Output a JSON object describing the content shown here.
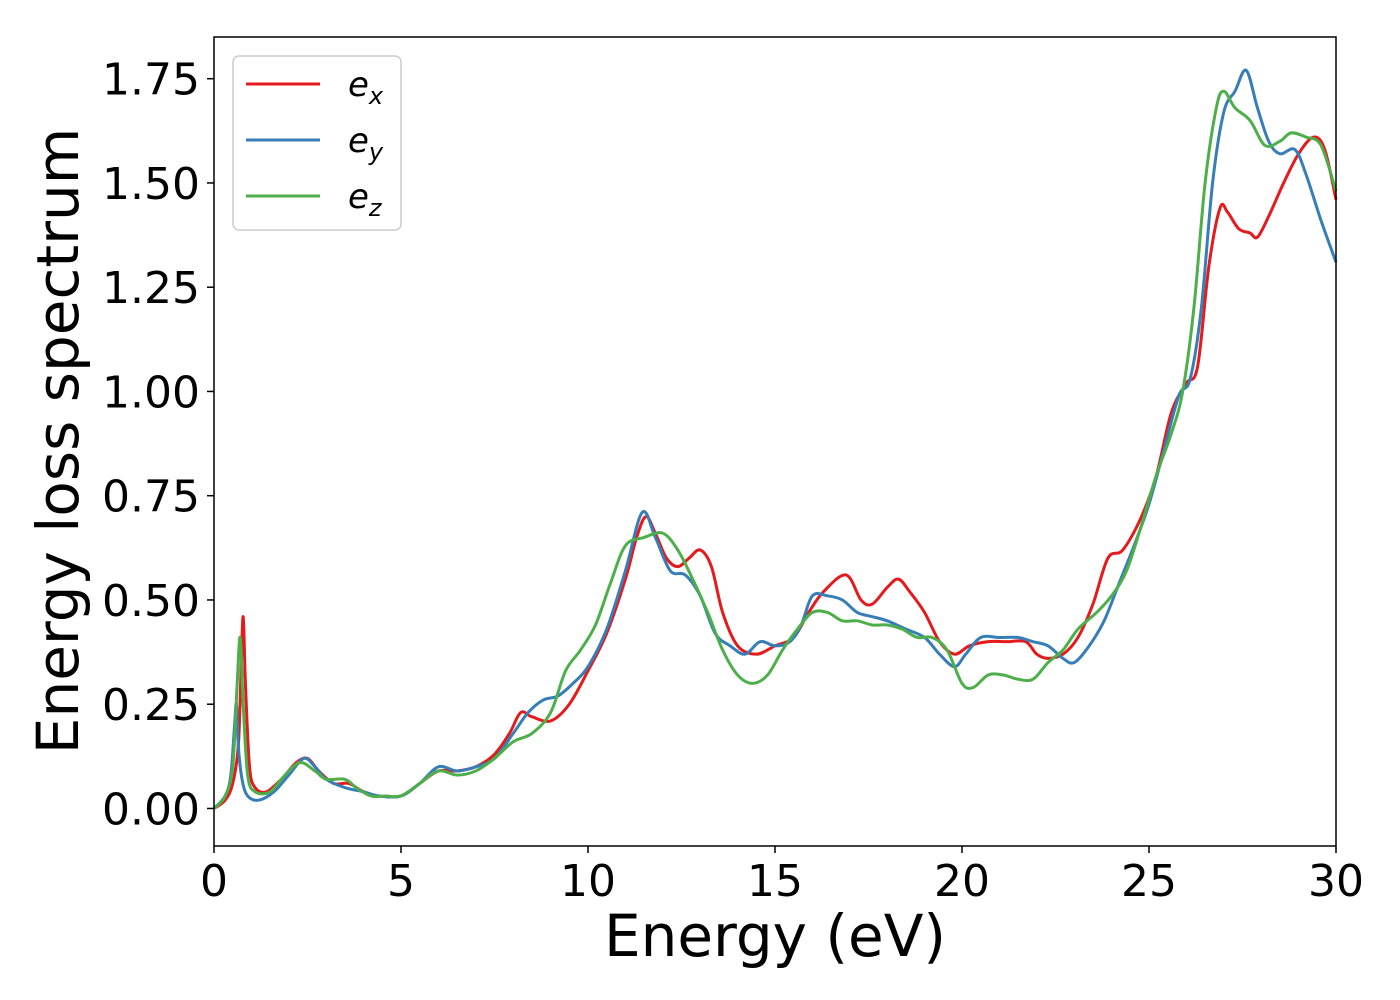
{
  "chart_data": {
    "type": "line",
    "title": "",
    "xlabel": "Energy (eV)",
    "ylabel": "Energy loss spectrum",
    "xlim": [
      0,
      30
    ],
    "ylim": [
      -0.09,
      1.85
    ],
    "xticks": [
      0,
      5,
      10,
      15,
      20,
      25,
      30
    ],
    "xtick_labels": [
      "0",
      "5",
      "10",
      "15",
      "20",
      "25",
      "30"
    ],
    "yticks": [
      0.0,
      0.25,
      0.5,
      0.75,
      1.0,
      1.25,
      1.5,
      1.75
    ],
    "ytick_labels": [
      "0.00",
      "0.25",
      "0.50",
      "0.75",
      "1.00",
      "1.25",
      "1.50",
      "1.75"
    ],
    "grid": false,
    "legend_position": "top-left",
    "series": [
      {
        "name": "e",
        "subscript": "x",
        "color": "#e41a1c",
        "points": [
          [
            0.0,
            0.0
          ],
          [
            0.3,
            0.02
          ],
          [
            0.5,
            0.06
          ],
          [
            0.65,
            0.15
          ],
          [
            0.72,
            0.32
          ],
          [
            0.78,
            0.46
          ],
          [
            0.84,
            0.3
          ],
          [
            0.95,
            0.1
          ],
          [
            1.1,
            0.05
          ],
          [
            1.4,
            0.04
          ],
          [
            1.8,
            0.07
          ],
          [
            2.2,
            0.11
          ],
          [
            2.5,
            0.12
          ],
          [
            2.8,
            0.09
          ],
          [
            3.2,
            0.06
          ],
          [
            3.6,
            0.06
          ],
          [
            4.0,
            0.04
          ],
          [
            4.4,
            0.03
          ],
          [
            5.0,
            0.03
          ],
          [
            5.5,
            0.06
          ],
          [
            6.0,
            0.09
          ],
          [
            6.5,
            0.09
          ],
          [
            7.0,
            0.1
          ],
          [
            7.5,
            0.13
          ],
          [
            7.9,
            0.18
          ],
          [
            8.2,
            0.23
          ],
          [
            8.5,
            0.22
          ],
          [
            9.0,
            0.21
          ],
          [
            9.5,
            0.25
          ],
          [
            10.0,
            0.33
          ],
          [
            10.5,
            0.42
          ],
          [
            11.0,
            0.55
          ],
          [
            11.3,
            0.65
          ],
          [
            11.55,
            0.7
          ],
          [
            11.8,
            0.66
          ],
          [
            12.1,
            0.6
          ],
          [
            12.4,
            0.58
          ],
          [
            12.7,
            0.6
          ],
          [
            13.0,
            0.62
          ],
          [
            13.3,
            0.58
          ],
          [
            13.6,
            0.47
          ],
          [
            14.0,
            0.39
          ],
          [
            14.5,
            0.37
          ],
          [
            15.0,
            0.39
          ],
          [
            15.5,
            0.41
          ],
          [
            15.9,
            0.47
          ],
          [
            16.3,
            0.52
          ],
          [
            16.9,
            0.56
          ],
          [
            17.3,
            0.5
          ],
          [
            17.6,
            0.49
          ],
          [
            18.0,
            0.53
          ],
          [
            18.3,
            0.55
          ],
          [
            18.6,
            0.52
          ],
          [
            19.0,
            0.47
          ],
          [
            19.4,
            0.4
          ],
          [
            19.8,
            0.37
          ],
          [
            20.2,
            0.39
          ],
          [
            20.7,
            0.4
          ],
          [
            21.2,
            0.4
          ],
          [
            21.7,
            0.4
          ],
          [
            22.0,
            0.37
          ],
          [
            22.3,
            0.36
          ],
          [
            22.7,
            0.37
          ],
          [
            23.1,
            0.41
          ],
          [
            23.5,
            0.49
          ],
          [
            23.9,
            0.6
          ],
          [
            24.3,
            0.62
          ],
          [
            24.8,
            0.7
          ],
          [
            25.2,
            0.8
          ],
          [
            25.6,
            0.95
          ],
          [
            26.0,
            1.02
          ],
          [
            26.3,
            1.06
          ],
          [
            26.6,
            1.3
          ],
          [
            26.9,
            1.44
          ],
          [
            27.1,
            1.43
          ],
          [
            27.4,
            1.39
          ],
          [
            27.7,
            1.38
          ],
          [
            27.9,
            1.37
          ],
          [
            28.2,
            1.42
          ],
          [
            28.6,
            1.5
          ],
          [
            29.0,
            1.57
          ],
          [
            29.4,
            1.61
          ],
          [
            29.7,
            1.58
          ],
          [
            30.0,
            1.46
          ]
        ]
      },
      {
        "name": "e",
        "subscript": "y",
        "color": "#377eb8",
        "points": [
          [
            0.0,
            0.0
          ],
          [
            0.3,
            0.03
          ],
          [
            0.45,
            0.08
          ],
          [
            0.55,
            0.2
          ],
          [
            0.6,
            0.25
          ],
          [
            0.65,
            0.15
          ],
          [
            0.75,
            0.07
          ],
          [
            0.9,
            0.03
          ],
          [
            1.2,
            0.02
          ],
          [
            1.6,
            0.04
          ],
          [
            2.0,
            0.08
          ],
          [
            2.4,
            0.12
          ],
          [
            2.7,
            0.1
          ],
          [
            3.0,
            0.07
          ],
          [
            3.5,
            0.05
          ],
          [
            4.0,
            0.04
          ],
          [
            4.4,
            0.03
          ],
          [
            5.0,
            0.03
          ],
          [
            5.5,
            0.06
          ],
          [
            6.0,
            0.1
          ],
          [
            6.5,
            0.09
          ],
          [
            7.0,
            0.1
          ],
          [
            7.5,
            0.12
          ],
          [
            8.0,
            0.18
          ],
          [
            8.4,
            0.23
          ],
          [
            8.8,
            0.26
          ],
          [
            9.2,
            0.27
          ],
          [
            9.6,
            0.3
          ],
          [
            10.0,
            0.34
          ],
          [
            10.5,
            0.43
          ],
          [
            11.0,
            0.57
          ],
          [
            11.45,
            0.71
          ],
          [
            11.8,
            0.65
          ],
          [
            12.2,
            0.57
          ],
          [
            12.6,
            0.56
          ],
          [
            13.0,
            0.51
          ],
          [
            13.4,
            0.42
          ],
          [
            13.8,
            0.39
          ],
          [
            14.2,
            0.37
          ],
          [
            14.6,
            0.4
          ],
          [
            15.0,
            0.39
          ],
          [
            15.4,
            0.4
          ],
          [
            15.7,
            0.44
          ],
          [
            16.0,
            0.51
          ],
          [
            16.4,
            0.51
          ],
          [
            16.8,
            0.5
          ],
          [
            17.2,
            0.47
          ],
          [
            17.6,
            0.46
          ],
          [
            18.0,
            0.45
          ],
          [
            18.5,
            0.43
          ],
          [
            19.0,
            0.41
          ],
          [
            19.4,
            0.37
          ],
          [
            19.8,
            0.34
          ],
          [
            20.1,
            0.37
          ],
          [
            20.5,
            0.41
          ],
          [
            21.0,
            0.41
          ],
          [
            21.5,
            0.41
          ],
          [
            21.9,
            0.4
          ],
          [
            22.3,
            0.39
          ],
          [
            22.7,
            0.36
          ],
          [
            23.0,
            0.35
          ],
          [
            23.4,
            0.39
          ],
          [
            23.8,
            0.45
          ],
          [
            24.2,
            0.54
          ],
          [
            24.6,
            0.63
          ],
          [
            25.0,
            0.73
          ],
          [
            25.4,
            0.86
          ],
          [
            25.8,
            0.99
          ],
          [
            26.1,
            1.03
          ],
          [
            26.4,
            1.2
          ],
          [
            26.7,
            1.5
          ],
          [
            27.0,
            1.67
          ],
          [
            27.3,
            1.72
          ],
          [
            27.6,
            1.77
          ],
          [
            27.9,
            1.68
          ],
          [
            28.2,
            1.6
          ],
          [
            28.5,
            1.57
          ],
          [
            28.9,
            1.58
          ],
          [
            29.2,
            1.52
          ],
          [
            29.6,
            1.41
          ],
          [
            30.0,
            1.31
          ]
        ]
      },
      {
        "name": "e",
        "subscript": "z",
        "color": "#4daf4a",
        "points": [
          [
            0.0,
            0.0
          ],
          [
            0.3,
            0.03
          ],
          [
            0.5,
            0.1
          ],
          [
            0.62,
            0.3
          ],
          [
            0.7,
            0.41
          ],
          [
            0.78,
            0.25
          ],
          [
            0.9,
            0.08
          ],
          [
            1.1,
            0.04
          ],
          [
            1.5,
            0.04
          ],
          [
            1.9,
            0.08
          ],
          [
            2.3,
            0.11
          ],
          [
            2.7,
            0.09
          ],
          [
            3.0,
            0.07
          ],
          [
            3.5,
            0.07
          ],
          [
            3.8,
            0.05
          ],
          [
            4.2,
            0.03
          ],
          [
            4.6,
            0.03
          ],
          [
            5.0,
            0.03
          ],
          [
            5.5,
            0.06
          ],
          [
            6.0,
            0.09
          ],
          [
            6.5,
            0.08
          ],
          [
            7.0,
            0.09
          ],
          [
            7.5,
            0.12
          ],
          [
            8.0,
            0.16
          ],
          [
            8.5,
            0.18
          ],
          [
            9.0,
            0.23
          ],
          [
            9.4,
            0.33
          ],
          [
            9.8,
            0.38
          ],
          [
            10.2,
            0.44
          ],
          [
            10.6,
            0.54
          ],
          [
            11.0,
            0.63
          ],
          [
            11.5,
            0.65
          ],
          [
            12.0,
            0.66
          ],
          [
            12.4,
            0.62
          ],
          [
            12.8,
            0.55
          ],
          [
            13.2,
            0.47
          ],
          [
            13.6,
            0.38
          ],
          [
            14.0,
            0.32
          ],
          [
            14.4,
            0.3
          ],
          [
            14.8,
            0.32
          ],
          [
            15.2,
            0.38
          ],
          [
            15.6,
            0.43
          ],
          [
            16.0,
            0.47
          ],
          [
            16.4,
            0.47
          ],
          [
            16.8,
            0.45
          ],
          [
            17.2,
            0.45
          ],
          [
            17.6,
            0.44
          ],
          [
            18.0,
            0.44
          ],
          [
            18.4,
            0.43
          ],
          [
            18.8,
            0.41
          ],
          [
            19.2,
            0.41
          ],
          [
            19.6,
            0.38
          ],
          [
            20.0,
            0.3
          ],
          [
            20.3,
            0.29
          ],
          [
            20.7,
            0.32
          ],
          [
            21.1,
            0.32
          ],
          [
            21.5,
            0.31
          ],
          [
            21.9,
            0.31
          ],
          [
            22.3,
            0.35
          ],
          [
            22.7,
            0.38
          ],
          [
            23.1,
            0.43
          ],
          [
            23.6,
            0.47
          ],
          [
            24.0,
            0.51
          ],
          [
            24.4,
            0.57
          ],
          [
            24.8,
            0.68
          ],
          [
            25.2,
            0.8
          ],
          [
            25.6,
            0.9
          ],
          [
            25.9,
            1.0
          ],
          [
            26.2,
            1.2
          ],
          [
            26.5,
            1.5
          ],
          [
            26.8,
            1.68
          ],
          [
            27.0,
            1.72
          ],
          [
            27.3,
            1.68
          ],
          [
            27.7,
            1.65
          ],
          [
            28.1,
            1.59
          ],
          [
            28.5,
            1.6
          ],
          [
            28.8,
            1.62
          ],
          [
            29.2,
            1.61
          ],
          [
            29.6,
            1.59
          ],
          [
            30.0,
            1.48
          ]
        ]
      }
    ]
  }
}
